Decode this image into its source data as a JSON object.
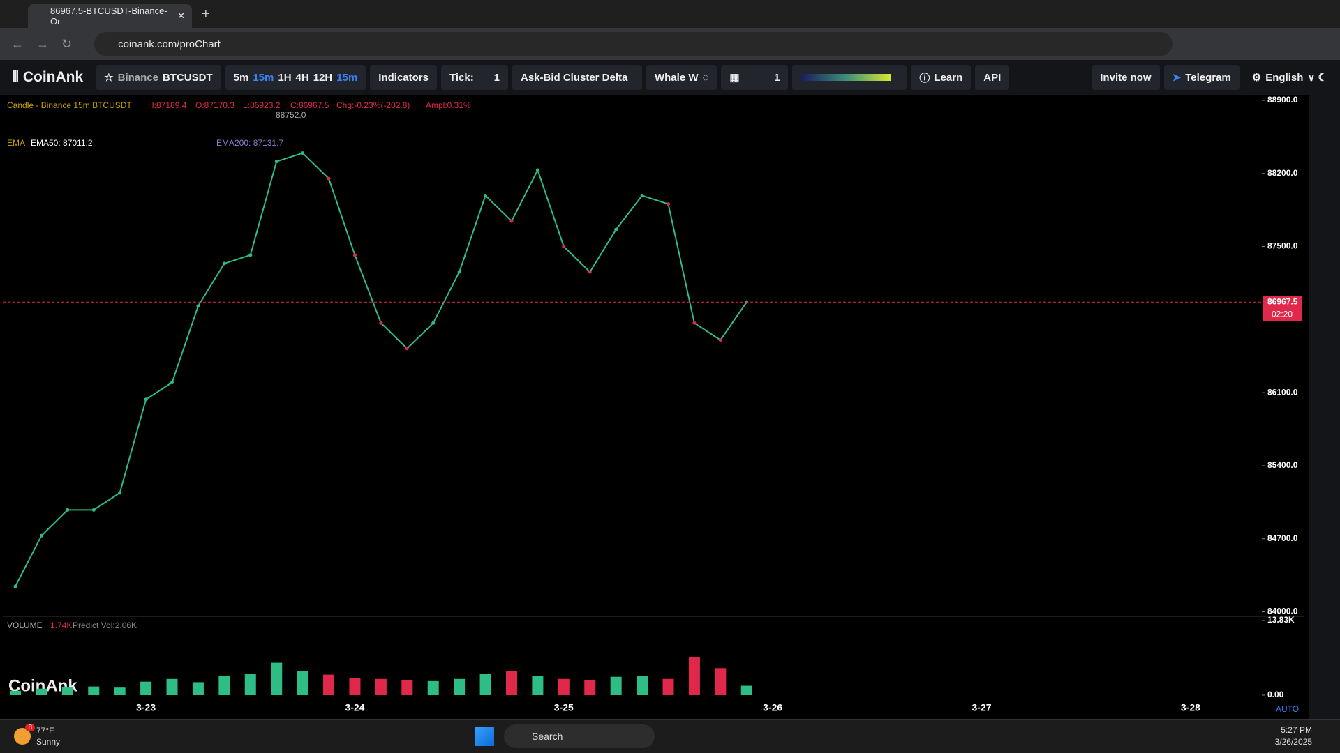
{
  "browser": {
    "tab_title": "86967.5-BTCUSDT-Binance- Or",
    "url": "coinank.com/proChart"
  },
  "toolbar": {
    "brand": "CoinAnk",
    "exchange": "Binance",
    "symbol": "BTCUSDT",
    "intervals": [
      "5m",
      "15m",
      "1H",
      "4H",
      "12H"
    ],
    "interval_selected": "15m",
    "indicators": "Indicators",
    "tick_label": "Tick:",
    "tick_value": "1",
    "mode": "Ask-Bid Cluster Delta",
    "whale": "Whale W",
    "layout_count": "1",
    "learn": "Learn",
    "api": "API",
    "invite": "Invite now",
    "telegram": "Telegram",
    "language": "English"
  },
  "legend": {
    "candle": "Candle - Binance 15m BTCUSDT",
    "high": "H:87189.4",
    "open": "O:87170.3",
    "low": "L:86923.2",
    "close": "C:86967.5",
    "change": "Chg:-0.23%(-202.8)",
    "amplitude": "Ampl:0.31%",
    "max_marker": "88752.0",
    "ema_label": "EMA",
    "ema50": "EMA50: 87011.2",
    "ema200": "EMA200: 87131.7"
  },
  "chart_data": [
    {
      "type": "line",
      "color": "#2ebd85",
      "grid": false,
      "categories": [
        null,
        null,
        null,
        null,
        null,
        "3-23",
        null,
        null,
        null,
        null,
        null,
        null,
        null,
        "3-24",
        null,
        null,
        null,
        null,
        null,
        null,
        null,
        "3-25",
        null,
        null,
        null,
        null,
        null,
        null,
        null,
        "3-26",
        null,
        null,
        null,
        null,
        null,
        null,
        null,
        "3-27",
        null,
        null,
        null,
        null,
        null,
        null,
        null,
        "3-28",
        null
      ],
      "values": [
        84244,
        84730,
        84976,
        84976,
        85140,
        86035,
        86197,
        86930,
        87337,
        87418,
        88314,
        88395,
        88151,
        87418,
        86767,
        86523,
        86767,
        87256,
        87988,
        87744,
        88232,
        87500,
        87256,
        87663,
        87988,
        87907,
        86767,
        86604,
        86967.5,
        null,
        null,
        null,
        null,
        null,
        null,
        null,
        null,
        null,
        null,
        null,
        null,
        null,
        null,
        null,
        null,
        null,
        null
      ],
      "ylim": [
        83970,
        88940
      ],
      "yticks": [
        {
          "value": 84000,
          "label": "84000.0"
        },
        {
          "value": 84700,
          "label": "84700.0"
        },
        {
          "value": 85400,
          "label": "85400.0"
        },
        {
          "value": 86100,
          "label": "86100.0"
        },
        {
          "value": 87500,
          "label": "87500.0"
        },
        {
          "value": 88200,
          "label": "88200.0"
        },
        {
          "value": 88900,
          "label": "88900.0"
        }
      ],
      "current_price": 86967.5,
      "current_color": "#e0294a",
      "countdown": "02:20",
      "scale_mode": "AUTO"
    },
    {
      "type": "bar",
      "title": "VOLUME",
      "current": "1.74K",
      "predict": "Predict Vol:2.06K",
      "watermark": "CoinAnk",
      "up_color": "#2ebd85",
      "down_color": "#e0294a",
      "values": [
        800,
        1200,
        1500,
        1600,
        1400,
        2500,
        3000,
        2400,
        3500,
        4000,
        6000,
        4500,
        3800,
        3200,
        3000,
        2800,
        2600,
        3000,
        4000,
        4500,
        3500,
        3000,
        2800,
        3400,
        3600,
        3000,
        7000,
        5000,
        1740,
        null,
        null,
        null,
        null,
        null,
        null,
        null,
        null,
        null,
        null,
        null,
        null,
        null,
        null,
        null,
        null,
        null,
        null
      ],
      "ylim": [
        0,
        13830
      ],
      "yticks": [
        {
          "value": 0,
          "label": "0.00"
        },
        {
          "value": 13830,
          "label": "13.83K"
        }
      ]
    }
  ],
  "taskbar": {
    "badge": "8",
    "weather_temp": "77°F",
    "weather_desc": "Sunny",
    "search": "Search",
    "time": "5:27 PM",
    "date": "3/26/2025"
  }
}
